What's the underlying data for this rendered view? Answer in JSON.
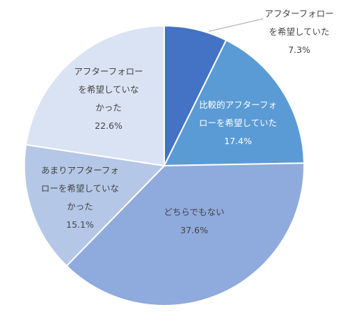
{
  "chart_data": {
    "type": "pie",
    "colors": [
      "#4472c4",
      "#5b9bd5",
      "#8faadc",
      "#b4c7e7",
      "#dae3f3"
    ],
    "slices": [
      {
        "value": 7.3,
        "label_lines": [
          "アフターフォロー",
          "を希望していた"
        ],
        "percent": "7.3%"
      },
      {
        "value": 17.4,
        "label_lines": [
          "比較的アフターフォ",
          "ローを希望していた"
        ],
        "percent": "17.4%"
      },
      {
        "value": 37.6,
        "label_lines": [
          "どちらでもない"
        ],
        "percent": "37.6%"
      },
      {
        "value": 15.1,
        "label_lines": [
          "あまりアフターフォ",
          "ローを希望していな",
          "かった"
        ],
        "percent": "15.1%"
      },
      {
        "value": 22.6,
        "label_lines": [
          "アフターフォロー",
          "を希望していな",
          "かった"
        ],
        "percent": "22.6%"
      }
    ]
  }
}
